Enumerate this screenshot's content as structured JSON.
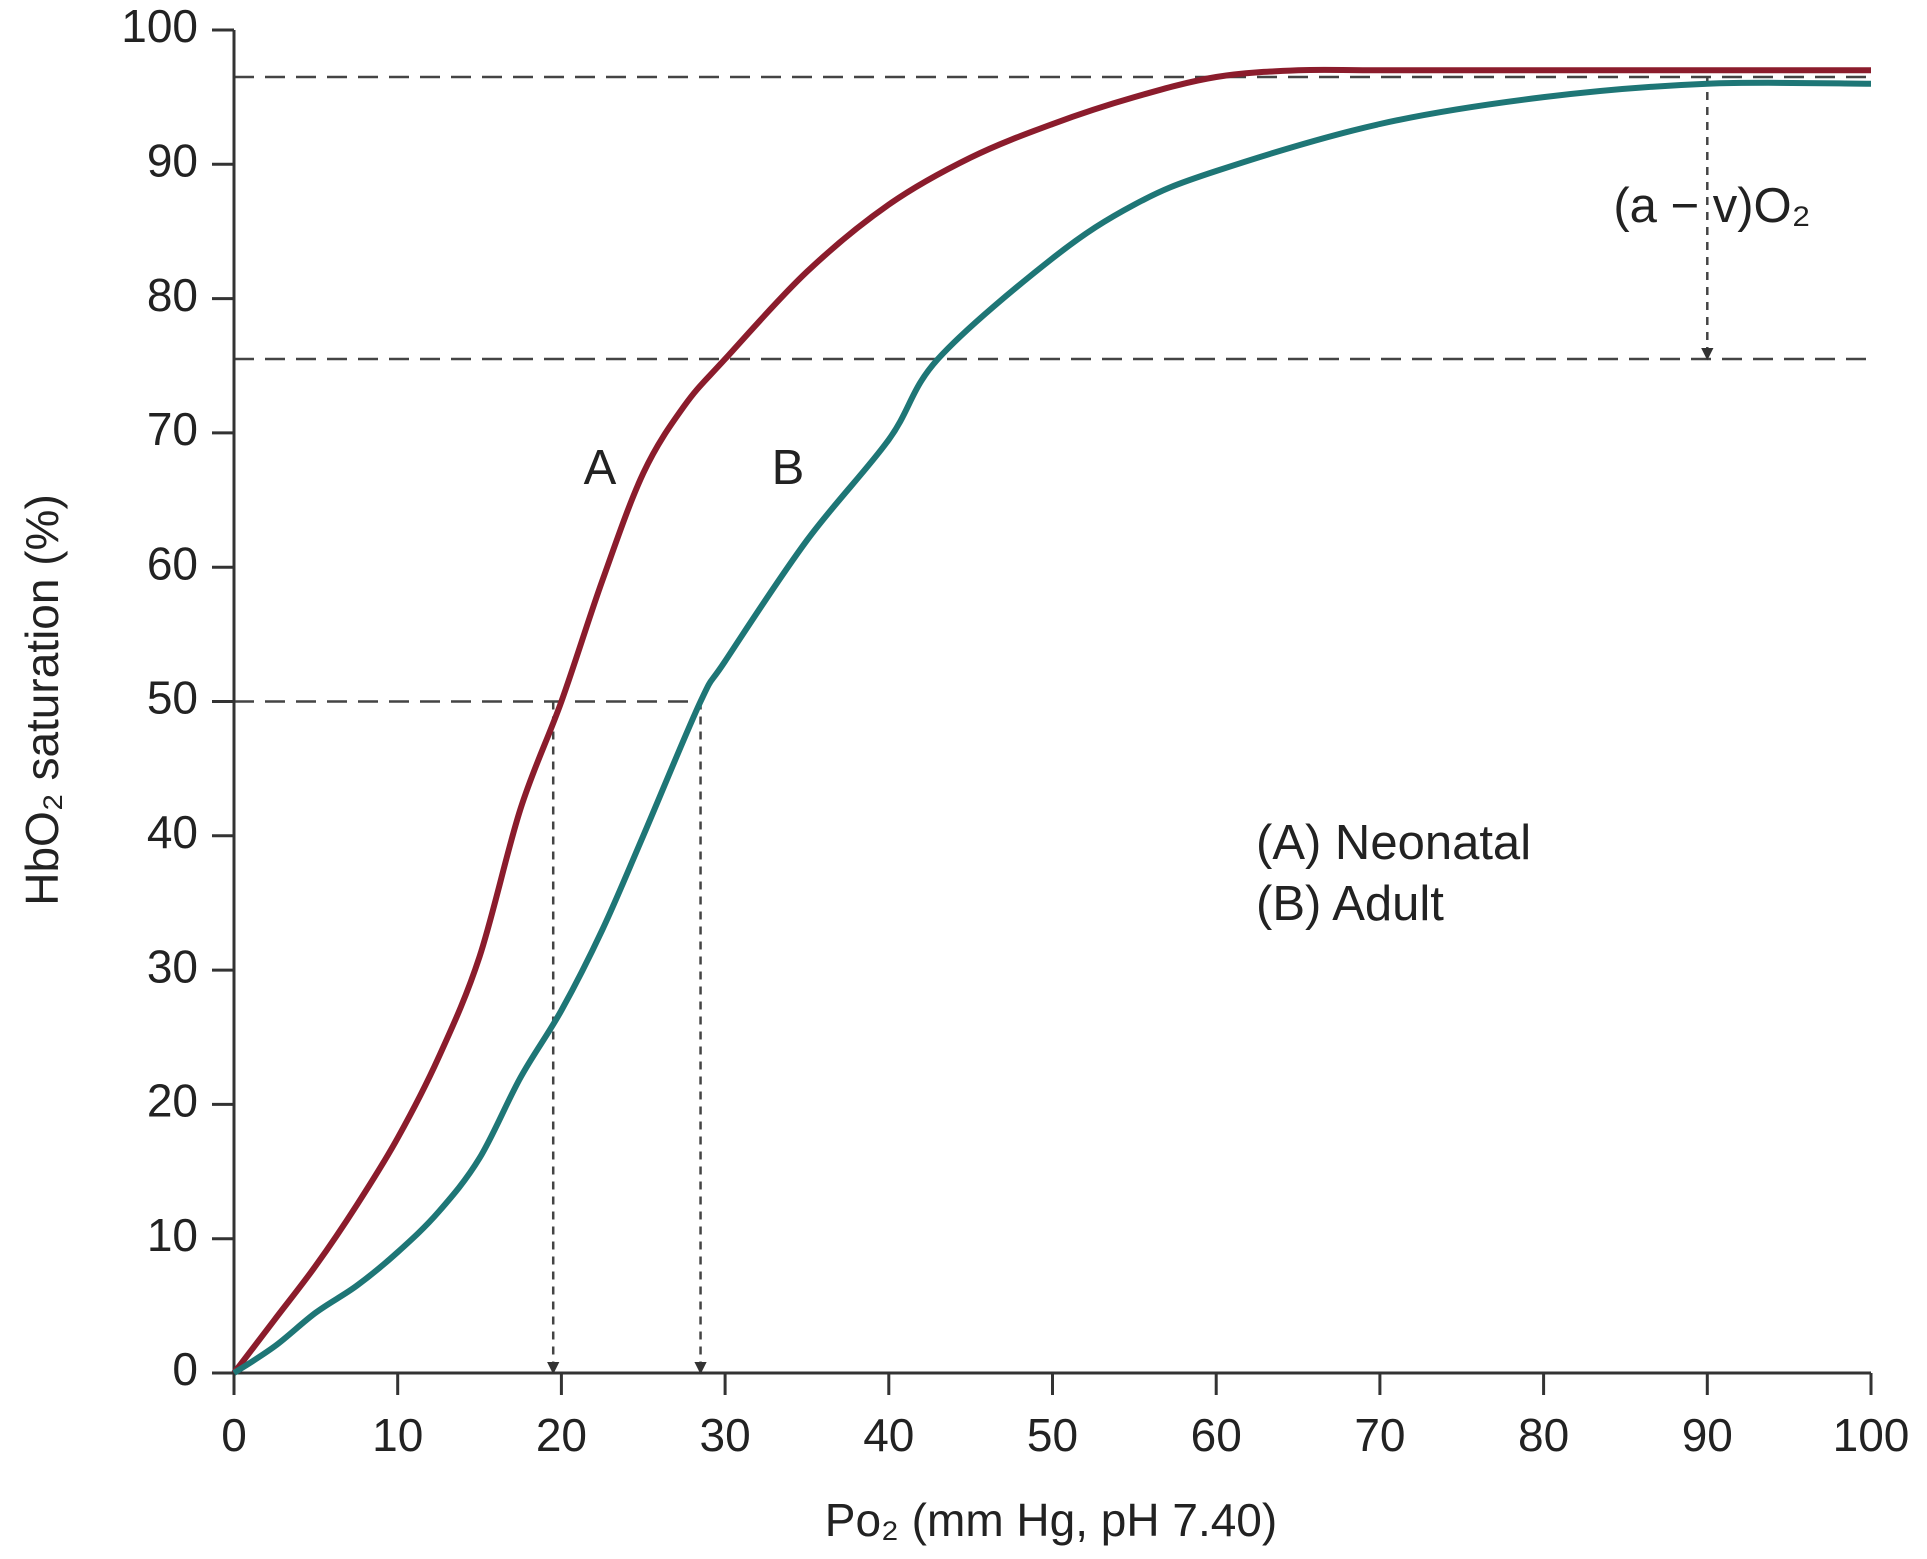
{
  "chart_data": {
    "type": "line",
    "x_label": "Po₂ (mm Hg, pH 7.40)",
    "y_label": "HbO₂ saturation (%)",
    "xlim": [
      0,
      100
    ],
    "xticks": [
      0,
      10,
      20,
      30,
      40,
      50,
      60,
      70,
      80,
      90,
      100
    ],
    "ylim": [
      0,
      100
    ],
    "yticks": [
      0,
      10,
      20,
      30,
      40,
      50,
      60,
      70,
      80,
      90,
      100
    ],
    "series": [
      {
        "name": "(A) Neonatal",
        "label": "A",
        "color": "#8b1c2c",
        "x": [
          0,
          2.5,
          5,
          7.5,
          10,
          12.5,
          15,
          17.5,
          20,
          22.5,
          25,
          27.5,
          30,
          35,
          40,
          45,
          50,
          55,
          60,
          65,
          70,
          80,
          90,
          100
        ],
        "values": [
          0,
          4,
          8,
          12.5,
          17.5,
          23.5,
          31,
          42,
          50,
          59,
          67,
          72,
          75.5,
          82,
          87,
          90.5,
          93,
          95,
          96.5,
          97,
          97,
          97,
          97,
          97
        ]
      },
      {
        "name": "(B) Adult",
        "label": "B",
        "color": "#1e7676",
        "x": [
          0,
          2.5,
          5,
          7.5,
          10,
          12.5,
          15,
          17.5,
          20,
          22.5,
          25,
          28.5,
          30,
          35,
          40,
          43,
          50,
          55,
          60,
          70,
          80,
          90,
          100
        ],
        "values": [
          0,
          2,
          4.5,
          6.5,
          9,
          12,
          16,
          22,
          27,
          33,
          40,
          50,
          53,
          62,
          69.5,
          75.5,
          83,
          87,
          89.5,
          93,
          95,
          96,
          96
        ]
      }
    ],
    "annotation": "(a − v)O₂",
    "dashed_lines": [
      {
        "x": [
          0,
          100
        ],
        "y": [
          96.5,
          96.5
        ],
        "arrow": false
      },
      {
        "x": [
          0,
          100
        ],
        "y": [
          75.5,
          75.5
        ],
        "arrow": false
      },
      {
        "x": [
          0,
          28.5
        ],
        "y": [
          50,
          50
        ],
        "arrow": false
      },
      {
        "x": [
          19.5,
          19.5
        ],
        "y": [
          50,
          0
        ],
        "arrow": true
      },
      {
        "x": [
          28.5,
          28.5
        ],
        "y": [
          50,
          0
        ],
        "arrow": true
      },
      {
        "x": [
          90,
          90
        ],
        "y": [
          96.5,
          75.5
        ],
        "arrow": true
      }
    ]
  }
}
